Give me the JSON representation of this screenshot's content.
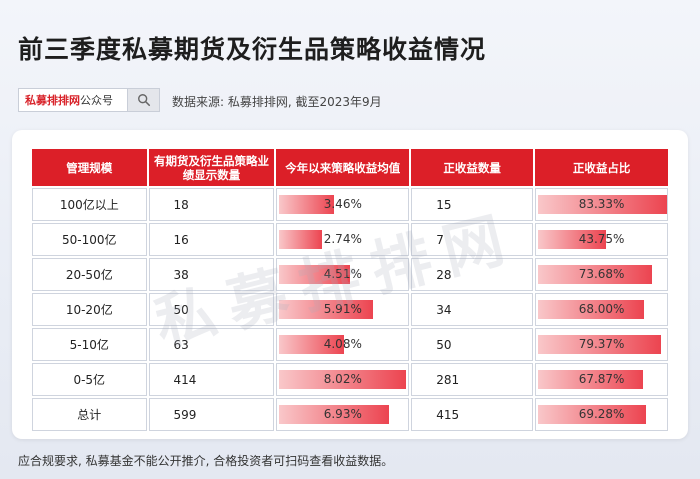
{
  "title": "前三季度私募期货及衍生品策略收益情况",
  "search": {
    "brand": "私募排排网",
    "suffix": "公众号"
  },
  "source": "数据来源: 私募排排网, 截至2023年9月",
  "watermark": "私募排排网",
  "table": {
    "headers": [
      "管理规模",
      "有期货及衍生品策略业绩显示数量",
      "今年以来策略收益均值",
      "正收益数量",
      "正收益占比"
    ],
    "rows": [
      {
        "scale": "100亿以上",
        "count": "18",
        "avg_return": "3.46%",
        "avg_return_value": 3.46,
        "pos_count": "15",
        "pos_ratio": "83.33%",
        "pos_ratio_value": 83.33
      },
      {
        "scale": "50-100亿",
        "count": "16",
        "avg_return": "2.74%",
        "avg_return_value": 2.74,
        "pos_count": "7",
        "pos_ratio": "43.75%",
        "pos_ratio_value": 43.75
      },
      {
        "scale": "20-50亿",
        "count": "38",
        "avg_return": "4.51%",
        "avg_return_value": 4.51,
        "pos_count": "28",
        "pos_ratio": "73.68%",
        "pos_ratio_value": 73.68
      },
      {
        "scale": "10-20亿",
        "count": "50",
        "avg_return": "5.91%",
        "avg_return_value": 5.91,
        "pos_count": "34",
        "pos_ratio": "68.00%",
        "pos_ratio_value": 68.0
      },
      {
        "scale": "5-10亿",
        "count": "63",
        "avg_return": "4.08%",
        "avg_return_value": 4.08,
        "pos_count": "50",
        "pos_ratio": "79.37%",
        "pos_ratio_value": 79.37
      },
      {
        "scale": "0-5亿",
        "count": "414",
        "avg_return": "8.02%",
        "avg_return_value": 8.02,
        "pos_count": "281",
        "pos_ratio": "67.87%",
        "pos_ratio_value": 67.87
      },
      {
        "scale": "总计",
        "count": "599",
        "avg_return": "6.93%",
        "avg_return_value": 6.93,
        "pos_count": "415",
        "pos_ratio": "69.28%",
        "pos_ratio_value": 69.28
      }
    ]
  },
  "footer": "应合规要求, 私募基金不能公开推介, 合格投资者可扫码查看收益数据。",
  "colors": {
    "header_red": "#dc1f28",
    "bar_red": "#ec4450",
    "brand_red": "#d8232a"
  },
  "icons": {
    "search": "search-icon"
  }
}
